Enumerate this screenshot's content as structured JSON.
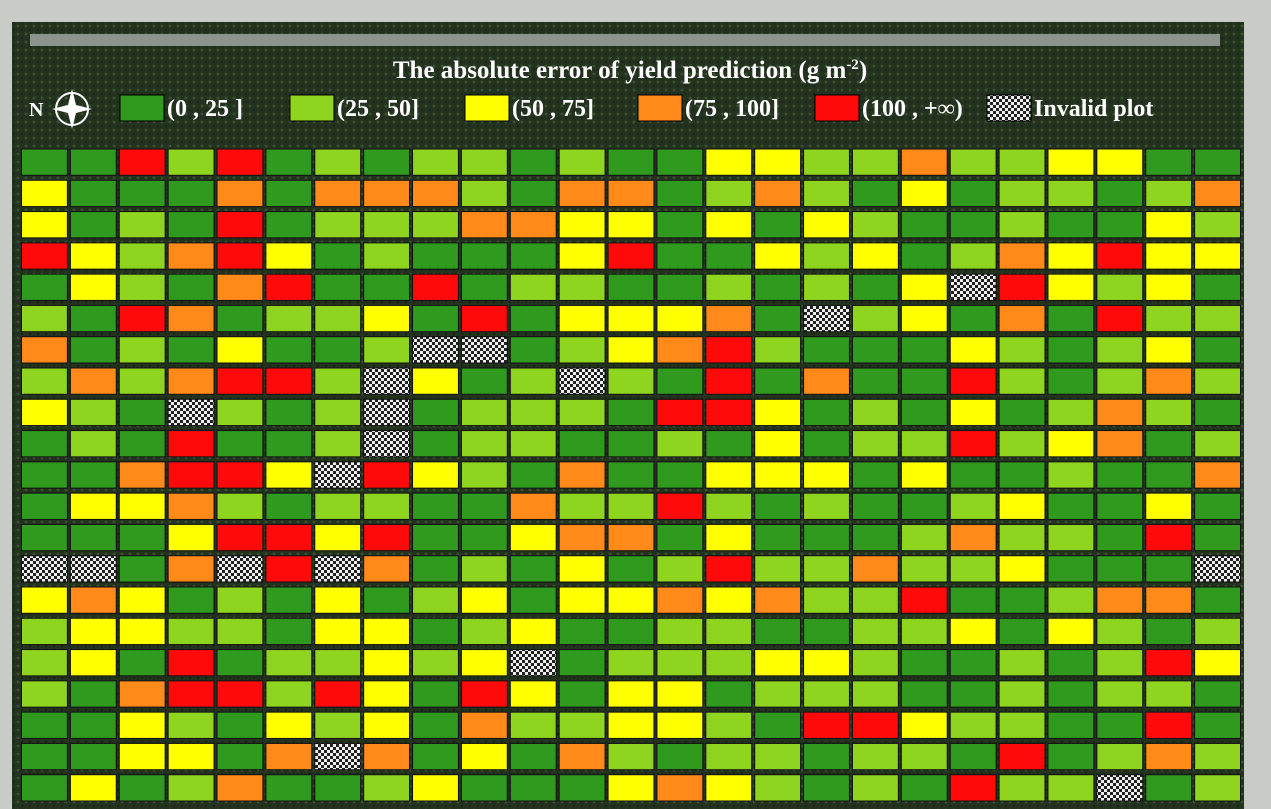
{
  "title": "The absolute error of yield prediction (g m",
  "title_sup": "-2",
  "title_end": ")",
  "north": "N",
  "legend": [
    {
      "label": "(0 , 25 ]",
      "color": "#2f9a1e"
    },
    {
      "label": "(25 , 50]",
      "color": "#8fd41f"
    },
    {
      "label": "(50 , 75]",
      "color": "#ffff00"
    },
    {
      "label": "(75 , 100]",
      "color": "#ff8a1a"
    },
    {
      "label": "(100 , +∞)",
      "color": "#ff0a0a"
    },
    {
      "label": "Invalid plot",
      "color": "checker"
    }
  ],
  "plots": {
    "rows": [
      [
        0,
        0,
        4,
        1,
        4,
        0,
        1,
        0,
        1,
        1,
        0,
        1,
        0,
        0,
        2,
        2,
        1,
        1,
        3,
        1,
        1,
        2,
        2,
        0,
        0
      ],
      [
        2,
        0,
        0,
        0,
        3,
        0,
        3,
        3,
        3,
        1,
        0,
        3,
        3,
        0,
        1,
        3,
        1,
        0,
        2,
        0,
        1,
        1,
        0,
        1,
        3
      ],
      [
        2,
        0,
        1,
        0,
        4,
        0,
        1,
        1,
        1,
        3,
        3,
        2,
        2,
        0,
        2,
        0,
        2,
        1,
        0,
        0,
        1,
        0,
        0,
        2,
        1
      ],
      [
        4,
        2,
        1,
        3,
        4,
        2,
        0,
        1,
        0,
        0,
        0,
        2,
        4,
        0,
        0,
        2,
        1,
        2,
        0,
        1,
        3,
        2,
        4,
        2,
        2
      ],
      [
        0,
        2,
        1,
        0,
        3,
        4,
        0,
        0,
        4,
        0,
        1,
        1,
        0,
        0,
        1,
        0,
        1,
        0,
        2,
        5,
        4,
        2,
        1,
        2,
        0
      ],
      [
        1,
        0,
        4,
        3,
        0,
        1,
        1,
        2,
        0,
        4,
        0,
        2,
        2,
        2,
        3,
        0,
        5,
        1,
        2,
        0,
        3,
        0,
        4,
        1,
        1
      ],
      [
        3,
        0,
        1,
        0,
        2,
        0,
        0,
        1,
        5,
        5,
        0,
        1,
        2,
        3,
        4,
        1,
        0,
        0,
        0,
        2,
        1,
        0,
        1,
        2,
        0
      ],
      [
        1,
        3,
        1,
        3,
        4,
        4,
        1,
        5,
        2,
        0,
        1,
        5,
        1,
        0,
        4,
        0,
        3,
        0,
        0,
        4,
        1,
        0,
        1,
        3,
        1
      ],
      [
        2,
        1,
        0,
        5,
        1,
        0,
        1,
        5,
        0,
        1,
        1,
        1,
        0,
        4,
        4,
        2,
        0,
        1,
        0,
        2,
        0,
        1,
        3,
        1,
        0
      ],
      [
        0,
        1,
        0,
        4,
        0,
        0,
        1,
        5,
        0,
        1,
        1,
        0,
        0,
        1,
        0,
        2,
        0,
        1,
        1,
        4,
        1,
        2,
        3,
        0,
        1
      ],
      [
        0,
        0,
        3,
        4,
        4,
        2,
        5,
        4,
        2,
        1,
        0,
        3,
        0,
        0,
        2,
        2,
        2,
        0,
        2,
        0,
        0,
        1,
        0,
        0,
        3
      ],
      [
        0,
        2,
        2,
        3,
        1,
        0,
        1,
        1,
        0,
        0,
        3,
        1,
        1,
        4,
        1,
        0,
        1,
        0,
        0,
        1,
        2,
        0,
        0,
        2,
        0
      ],
      [
        0,
        0,
        0,
        2,
        4,
        4,
        2,
        4,
        0,
        0,
        2,
        3,
        3,
        0,
        2,
        0,
        0,
        0,
        1,
        3,
        1,
        1,
        0,
        4,
        0
      ],
      [
        5,
        5,
        0,
        3,
        5,
        4,
        5,
        3,
        0,
        1,
        0,
        2,
        0,
        1,
        4,
        1,
        1,
        3,
        1,
        1,
        2,
        0,
        0,
        0,
        5
      ],
      [
        2,
        3,
        2,
        0,
        1,
        0,
        2,
        0,
        1,
        2,
        0,
        2,
        2,
        3,
        2,
        3,
        1,
        1,
        4,
        0,
        0,
        1,
        3,
        3,
        0
      ],
      [
        1,
        2,
        2,
        1,
        1,
        0,
        2,
        2,
        0,
        1,
        2,
        0,
        0,
        1,
        1,
        0,
        0,
        1,
        1,
        2,
        0,
        2,
        1,
        0,
        1
      ],
      [
        1,
        2,
        0,
        4,
        0,
        1,
        1,
        2,
        1,
        2,
        5,
        0,
        1,
        1,
        1,
        2,
        2,
        1,
        0,
        0,
        1,
        0,
        1,
        4,
        2
      ],
      [
        1,
        0,
        3,
        4,
        4,
        1,
        4,
        2,
        0,
        4,
        2,
        0,
        2,
        2,
        0,
        1,
        1,
        1,
        0,
        0,
        1,
        0,
        1,
        1,
        0
      ],
      [
        0,
        0,
        2,
        1,
        0,
        2,
        1,
        2,
        0,
        3,
        1,
        1,
        2,
        2,
        1,
        0,
        4,
        4,
        2,
        1,
        1,
        0,
        0,
        4,
        0
      ],
      [
        0,
        0,
        2,
        2,
        0,
        3,
        5,
        3,
        0,
        2,
        0,
        3,
        1,
        0,
        1,
        1,
        0,
        1,
        1,
        0,
        4,
        0,
        1,
        3,
        1
      ],
      [
        0,
        2,
        0,
        1,
        3,
        0,
        0,
        1,
        2,
        0,
        0,
        0,
        2,
        3,
        2,
        1,
        0,
        1,
        0,
        4,
        1,
        1,
        5,
        0,
        1
      ]
    ]
  }
}
